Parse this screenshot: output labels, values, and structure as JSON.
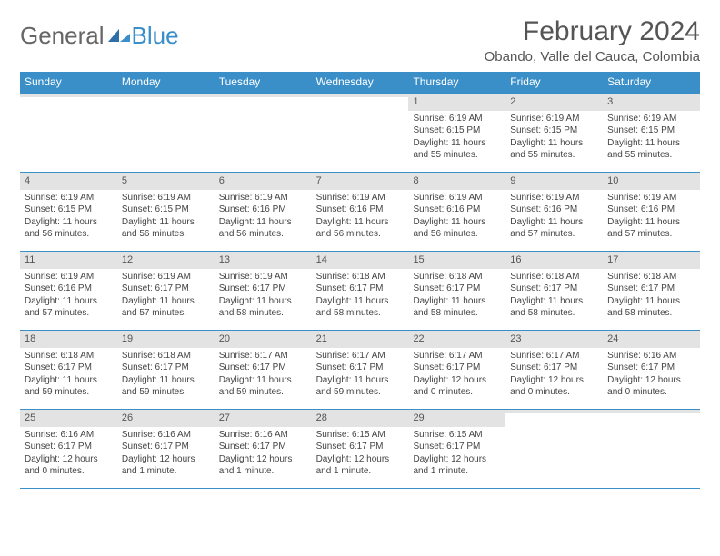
{
  "logo": {
    "text_a": "General",
    "text_b": "Blue"
  },
  "title": "February 2024",
  "location": "Obando, Valle del Cauca, Colombia",
  "colors": {
    "header_bg": "#3a8fc8",
    "header_text": "#ffffff",
    "daynum_bg": "#e3e3e3",
    "rule": "#3a8fc8",
    "text": "#444444"
  },
  "day_labels": [
    "Sunday",
    "Monday",
    "Tuesday",
    "Wednesday",
    "Thursday",
    "Friday",
    "Saturday"
  ],
  "weeks": [
    [
      null,
      null,
      null,
      null,
      {
        "n": "1",
        "sr": "Sunrise: 6:19 AM",
        "ss": "Sunset: 6:15 PM",
        "dl": "Daylight: 11 hours and 55 minutes."
      },
      {
        "n": "2",
        "sr": "Sunrise: 6:19 AM",
        "ss": "Sunset: 6:15 PM",
        "dl": "Daylight: 11 hours and 55 minutes."
      },
      {
        "n": "3",
        "sr": "Sunrise: 6:19 AM",
        "ss": "Sunset: 6:15 PM",
        "dl": "Daylight: 11 hours and 55 minutes."
      }
    ],
    [
      {
        "n": "4",
        "sr": "Sunrise: 6:19 AM",
        "ss": "Sunset: 6:15 PM",
        "dl": "Daylight: 11 hours and 56 minutes."
      },
      {
        "n": "5",
        "sr": "Sunrise: 6:19 AM",
        "ss": "Sunset: 6:15 PM",
        "dl": "Daylight: 11 hours and 56 minutes."
      },
      {
        "n": "6",
        "sr": "Sunrise: 6:19 AM",
        "ss": "Sunset: 6:16 PM",
        "dl": "Daylight: 11 hours and 56 minutes."
      },
      {
        "n": "7",
        "sr": "Sunrise: 6:19 AM",
        "ss": "Sunset: 6:16 PM",
        "dl": "Daylight: 11 hours and 56 minutes."
      },
      {
        "n": "8",
        "sr": "Sunrise: 6:19 AM",
        "ss": "Sunset: 6:16 PM",
        "dl": "Daylight: 11 hours and 56 minutes."
      },
      {
        "n": "9",
        "sr": "Sunrise: 6:19 AM",
        "ss": "Sunset: 6:16 PM",
        "dl": "Daylight: 11 hours and 57 minutes."
      },
      {
        "n": "10",
        "sr": "Sunrise: 6:19 AM",
        "ss": "Sunset: 6:16 PM",
        "dl": "Daylight: 11 hours and 57 minutes."
      }
    ],
    [
      {
        "n": "11",
        "sr": "Sunrise: 6:19 AM",
        "ss": "Sunset: 6:16 PM",
        "dl": "Daylight: 11 hours and 57 minutes."
      },
      {
        "n": "12",
        "sr": "Sunrise: 6:19 AM",
        "ss": "Sunset: 6:17 PM",
        "dl": "Daylight: 11 hours and 57 minutes."
      },
      {
        "n": "13",
        "sr": "Sunrise: 6:19 AM",
        "ss": "Sunset: 6:17 PM",
        "dl": "Daylight: 11 hours and 58 minutes."
      },
      {
        "n": "14",
        "sr": "Sunrise: 6:18 AM",
        "ss": "Sunset: 6:17 PM",
        "dl": "Daylight: 11 hours and 58 minutes."
      },
      {
        "n": "15",
        "sr": "Sunrise: 6:18 AM",
        "ss": "Sunset: 6:17 PM",
        "dl": "Daylight: 11 hours and 58 minutes."
      },
      {
        "n": "16",
        "sr": "Sunrise: 6:18 AM",
        "ss": "Sunset: 6:17 PM",
        "dl": "Daylight: 11 hours and 58 minutes."
      },
      {
        "n": "17",
        "sr": "Sunrise: 6:18 AM",
        "ss": "Sunset: 6:17 PM",
        "dl": "Daylight: 11 hours and 58 minutes."
      }
    ],
    [
      {
        "n": "18",
        "sr": "Sunrise: 6:18 AM",
        "ss": "Sunset: 6:17 PM",
        "dl": "Daylight: 11 hours and 59 minutes."
      },
      {
        "n": "19",
        "sr": "Sunrise: 6:18 AM",
        "ss": "Sunset: 6:17 PM",
        "dl": "Daylight: 11 hours and 59 minutes."
      },
      {
        "n": "20",
        "sr": "Sunrise: 6:17 AM",
        "ss": "Sunset: 6:17 PM",
        "dl": "Daylight: 11 hours and 59 minutes."
      },
      {
        "n": "21",
        "sr": "Sunrise: 6:17 AM",
        "ss": "Sunset: 6:17 PM",
        "dl": "Daylight: 11 hours and 59 minutes."
      },
      {
        "n": "22",
        "sr": "Sunrise: 6:17 AM",
        "ss": "Sunset: 6:17 PM",
        "dl": "Daylight: 12 hours and 0 minutes."
      },
      {
        "n": "23",
        "sr": "Sunrise: 6:17 AM",
        "ss": "Sunset: 6:17 PM",
        "dl": "Daylight: 12 hours and 0 minutes."
      },
      {
        "n": "24",
        "sr": "Sunrise: 6:16 AM",
        "ss": "Sunset: 6:17 PM",
        "dl": "Daylight: 12 hours and 0 minutes."
      }
    ],
    [
      {
        "n": "25",
        "sr": "Sunrise: 6:16 AM",
        "ss": "Sunset: 6:17 PM",
        "dl": "Daylight: 12 hours and 0 minutes."
      },
      {
        "n": "26",
        "sr": "Sunrise: 6:16 AM",
        "ss": "Sunset: 6:17 PM",
        "dl": "Daylight: 12 hours and 1 minute."
      },
      {
        "n": "27",
        "sr": "Sunrise: 6:16 AM",
        "ss": "Sunset: 6:17 PM",
        "dl": "Daylight: 12 hours and 1 minute."
      },
      {
        "n": "28",
        "sr": "Sunrise: 6:15 AM",
        "ss": "Sunset: 6:17 PM",
        "dl": "Daylight: 12 hours and 1 minute."
      },
      {
        "n": "29",
        "sr": "Sunrise: 6:15 AM",
        "ss": "Sunset: 6:17 PM",
        "dl": "Daylight: 12 hours and 1 minute."
      },
      null,
      null
    ]
  ]
}
